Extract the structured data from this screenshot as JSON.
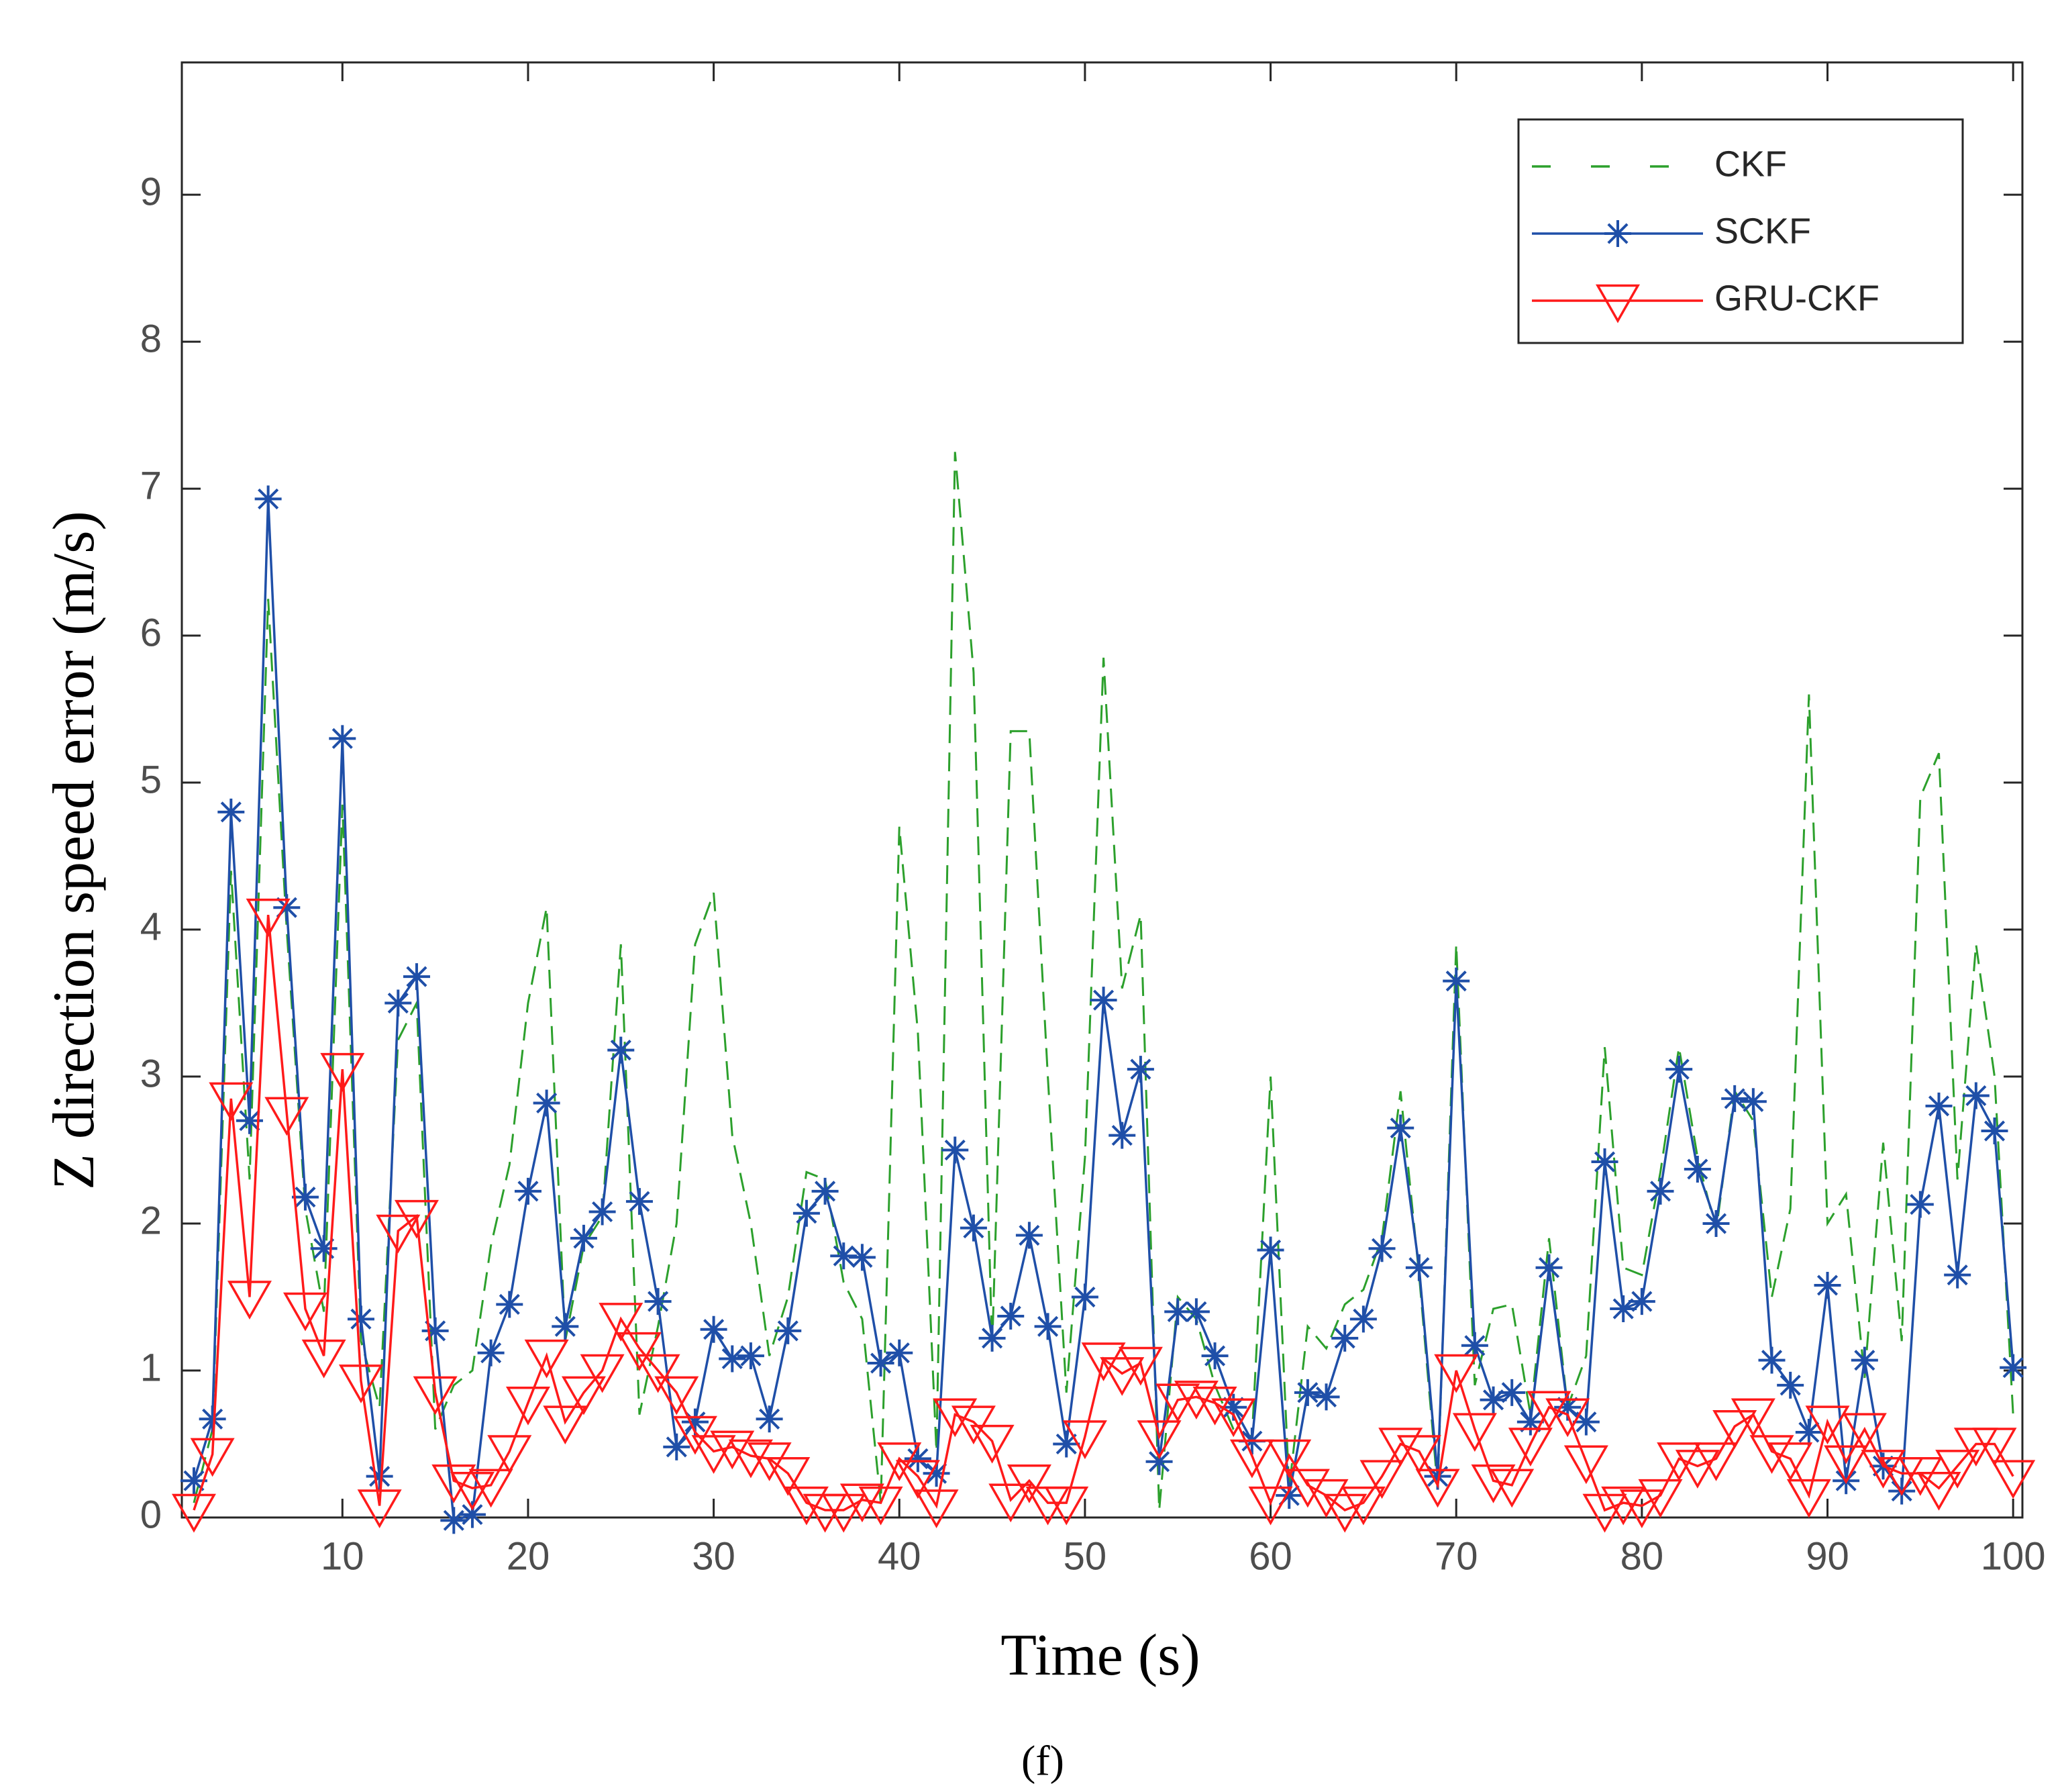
{
  "chart_data": {
    "type": "line",
    "caption": "(f)",
    "x_label": "Time (s)",
    "y_label": "Z direction speed error (m/s)",
    "x": [
      2,
      3,
      4,
      5,
      6,
      7,
      8,
      9,
      10,
      11,
      12,
      13,
      14,
      15,
      16,
      17,
      18,
      19,
      20,
      21,
      22,
      23,
      24,
      25,
      26,
      27,
      28,
      29,
      30,
      31,
      32,
      33,
      34,
      35,
      36,
      37,
      38,
      39,
      40,
      41,
      42,
      43,
      44,
      45,
      46,
      47,
      48,
      49,
      50,
      51,
      52,
      53,
      54,
      55,
      56,
      57,
      58,
      59,
      60,
      61,
      62,
      63,
      64,
      65,
      66,
      67,
      68,
      69,
      70,
      71,
      72,
      73,
      74,
      75,
      76,
      77,
      78,
      79,
      80,
      81,
      82,
      83,
      84,
      85,
      86,
      87,
      88,
      89,
      90,
      91,
      92,
      93,
      94,
      95,
      96,
      97,
      98,
      99,
      100
    ],
    "series": [
      {
        "name": "CKF",
        "color": "#2ca02c",
        "line_style": "dashed",
        "marker": "none",
        "values": [
          0.1,
          0.6,
          4.4,
          2.3,
          6.25,
          4.0,
          2.1,
          1.4,
          4.85,
          1.2,
          0.75,
          3.25,
          3.5,
          0.6,
          0.9,
          1.0,
          1.85,
          2.4,
          3.5,
          4.15,
          1.2,
          1.85,
          2.05,
          3.9,
          0.7,
          1.3,
          2.0,
          3.9,
          4.25,
          2.6,
          2.0,
          1.1,
          1.5,
          2.35,
          2.3,
          1.6,
          1.35,
          0.1,
          4.7,
          3.3,
          0.45,
          7.25,
          5.75,
          1.15,
          5.35,
          5.35,
          3.0,
          0.85,
          2.45,
          5.85,
          3.6,
          4.1,
          0.05,
          1.5,
          1.35,
          0.9,
          0.6,
          0.55,
          3.0,
          0.2,
          1.3,
          1.15,
          1.45,
          1.55,
          1.9,
          2.9,
          1.65,
          0.2,
          3.9,
          0.9,
          1.42,
          1.45,
          0.7,
          1.9,
          0.75,
          1.1,
          3.2,
          1.7,
          1.65,
          2.35,
          3.2,
          2.45,
          1.95,
          2.9,
          2.7,
          1.5,
          2.1,
          5.6,
          2.0,
          2.2,
          0.95,
          2.55,
          1.2,
          4.9,
          5.2,
          2.3,
          3.9,
          3.0,
          0.7
        ]
      },
      {
        "name": "SCKF",
        "color": "#1f4fa8",
        "line_style": "solid",
        "marker": "star",
        "values": [
          0.25,
          0.67,
          4.8,
          2.7,
          6.93,
          4.15,
          2.18,
          1.83,
          5.3,
          1.35,
          0.28,
          3.5,
          3.68,
          1.27,
          -0.02,
          0.02,
          1.12,
          1.45,
          2.22,
          2.82,
          1.3,
          1.9,
          2.08,
          3.18,
          2.15,
          1.47,
          0.48,
          0.65,
          1.28,
          1.08,
          1.1,
          0.67,
          1.27,
          2.07,
          2.22,
          1.78,
          1.77,
          1.05,
          1.12,
          0.4,
          0.3,
          2.5,
          1.97,
          1.22,
          1.37,
          1.92,
          1.3,
          0.5,
          1.5,
          3.52,
          2.6,
          3.05,
          0.38,
          1.4,
          1.4,
          1.1,
          0.75,
          0.52,
          1.82,
          0.15,
          0.85,
          0.82,
          1.22,
          1.35,
          1.83,
          2.65,
          1.7,
          0.28,
          3.65,
          1.17,
          0.8,
          0.85,
          0.65,
          1.7,
          0.75,
          0.65,
          2.42,
          1.42,
          1.47,
          2.22,
          3.05,
          2.37,
          2.0,
          2.85,
          2.83,
          1.07,
          0.9,
          0.58,
          1.58,
          0.25,
          1.07,
          0.35,
          0.18,
          2.13,
          2.8,
          1.65,
          2.87,
          2.63,
          1.02
        ]
      },
      {
        "name": "GRU-CKF",
        "color": "#ff1a1a",
        "line_style": "solid",
        "marker": "triangle-down",
        "values": [
          0.05,
          0.43,
          2.85,
          1.5,
          4.1,
          2.75,
          1.42,
          1.1,
          3.05,
          0.93,
          0.08,
          1.95,
          2.05,
          0.85,
          0.25,
          0.2,
          0.22,
          0.45,
          0.78,
          1.1,
          0.65,
          0.85,
          1.0,
          1.35,
          1.15,
          1.0,
          0.85,
          0.58,
          0.45,
          0.48,
          0.42,
          0.4,
          0.3,
          0.1,
          0.05,
          0.05,
          0.12,
          0.1,
          0.4,
          0.28,
          0.08,
          0.7,
          0.65,
          0.52,
          0.12,
          0.25,
          0.1,
          0.1,
          0.55,
          1.08,
          0.98,
          1.05,
          0.55,
          0.8,
          0.82,
          0.78,
          0.7,
          0.42,
          0.1,
          0.42,
          0.22,
          0.15,
          0.05,
          0.1,
          0.28,
          0.5,
          0.45,
          0.22,
          1.0,
          0.6,
          0.25,
          0.22,
          0.5,
          0.75,
          0.7,
          0.38,
          0.05,
          0.1,
          0.08,
          0.15,
          0.4,
          0.35,
          0.4,
          0.62,
          0.7,
          0.45,
          0.4,
          0.15,
          0.65,
          0.38,
          0.6,
          0.35,
          0.3,
          0.3,
          0.2,
          0.35,
          0.5,
          0.5,
          0.28
        ]
      }
    ],
    "xlim": [
      1.35,
      100.5
    ],
    "ylim": [
      0,
      9.9
    ],
    "xticks": [
      10,
      20,
      30,
      40,
      50,
      60,
      70,
      80,
      90,
      100
    ],
    "yticks": [
      0,
      1,
      2,
      3,
      4,
      5,
      6,
      7,
      8,
      9
    ],
    "legend": "upper right",
    "grid": false
  }
}
